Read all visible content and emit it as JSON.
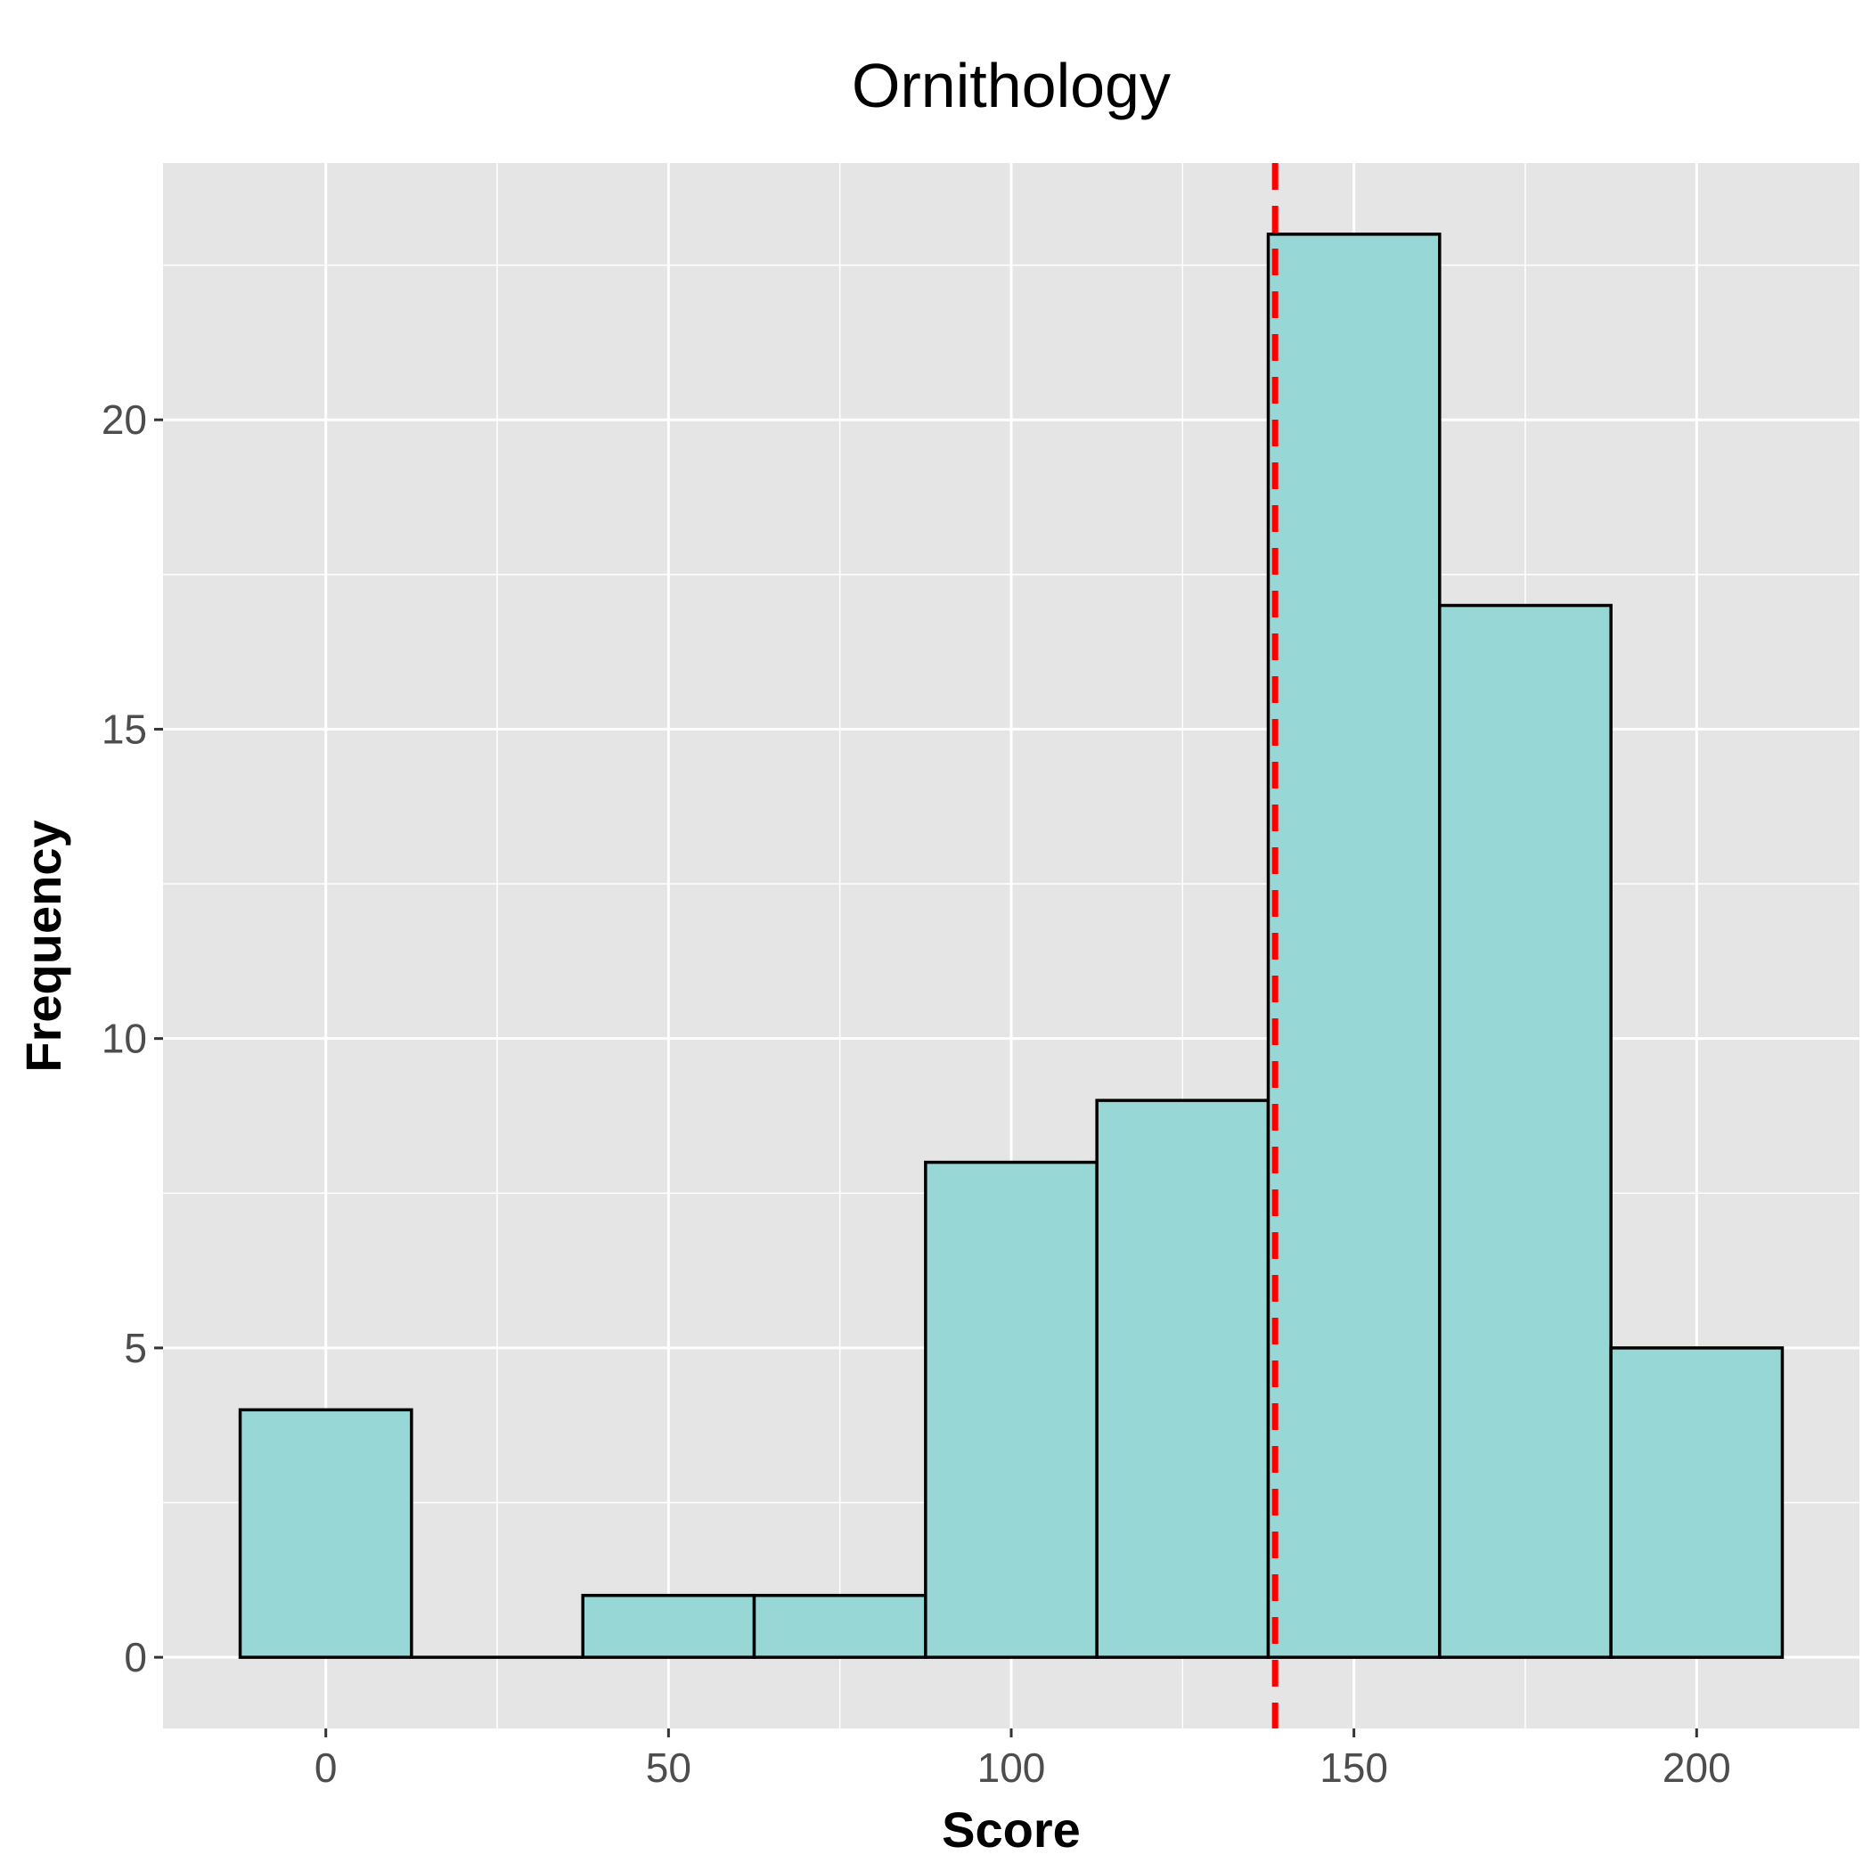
{
  "chart_data": {
    "type": "histogram",
    "title": "Ornithology",
    "xlabel": "Score",
    "ylabel": "Frequency",
    "bin_width": 25,
    "bins": [
      {
        "start": -12.5,
        "end": 12.5,
        "count": 4
      },
      {
        "start": 12.5,
        "end": 37.5,
        "count": 0
      },
      {
        "start": 37.5,
        "end": 62.5,
        "count": 1
      },
      {
        "start": 62.5,
        "end": 87.5,
        "count": 1
      },
      {
        "start": 87.5,
        "end": 112.5,
        "count": 8
      },
      {
        "start": 112.5,
        "end": 137.5,
        "count": 9
      },
      {
        "start": 137.5,
        "end": 162.5,
        "count": 23
      },
      {
        "start": 162.5,
        "end": 187.5,
        "count": 17
      },
      {
        "start": 187.5,
        "end": 212.5,
        "count": 5
      }
    ],
    "mean_line": {
      "x": 138.5,
      "style": "dashed",
      "color": "#ff0000"
    },
    "xlim": [
      -23.75,
      223.75
    ],
    "ylim": [
      -1.15,
      24.15
    ],
    "x_ticks": [
      0,
      50,
      100,
      150,
      200
    ],
    "x_tick_labels": [
      "0",
      "50",
      "100",
      "150",
      "200"
    ],
    "x_minor_ticks": [
      25,
      75,
      125,
      175
    ],
    "y_ticks": [
      0,
      5,
      10,
      15,
      20
    ],
    "y_tick_labels": [
      "0",
      "5",
      "10",
      "15",
      "20"
    ],
    "y_minor_ticks": [
      2.5,
      7.5,
      12.5,
      17.5,
      22.5
    ],
    "grid": true,
    "colors": {
      "panel": "#e5e5e5",
      "grid": "#ffffff",
      "bar_fill": "#97d7d6",
      "bar_stroke": "#000000",
      "tick_text": "#4d4d4d"
    }
  }
}
